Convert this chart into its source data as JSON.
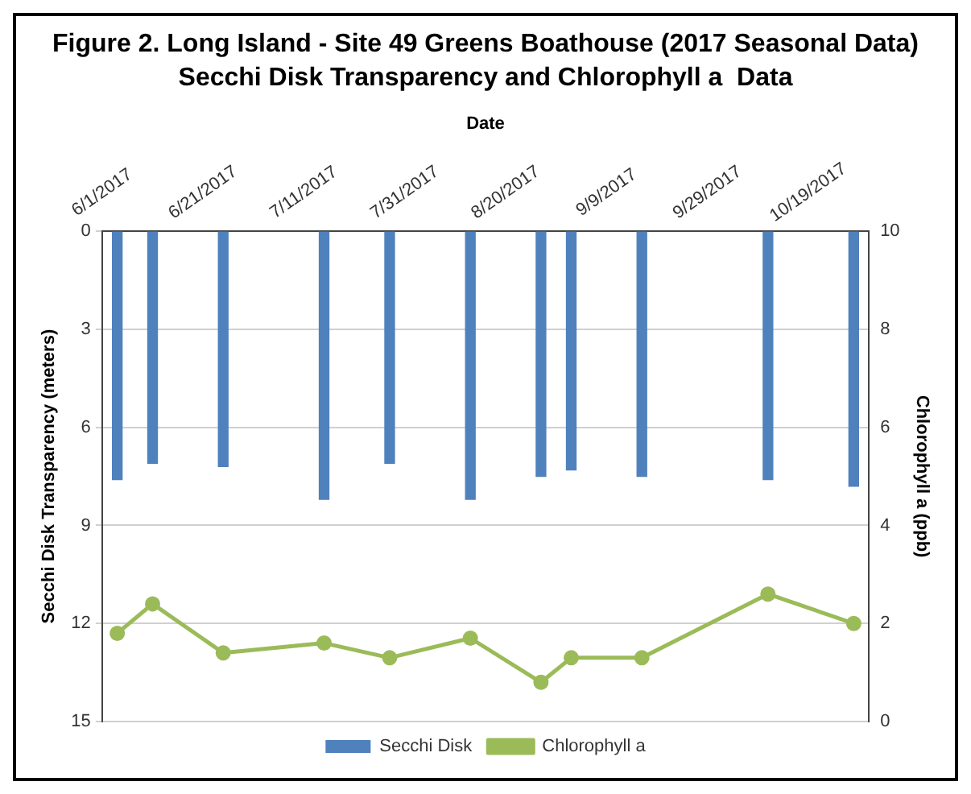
{
  "chart_data": {
    "type": "bar",
    "title": "Figure 2. Long Island - Site 49 Greens Boathouse (2017 Seasonal Data)",
    "subtitle": "Secchi Disk Transparency and Chlorophyll a  Data",
    "xlabel": "Date",
    "ylabel": "Secchi Disk Transparency (meters)",
    "y2label": "Chlorophyll a (ppb)",
    "x": [
      "2017-06-04",
      "2017-06-11",
      "2017-06-25",
      "2017-07-15",
      "2017-07-28",
      "2017-08-13",
      "2017-08-27",
      "2017-09-02",
      "2017-09-16",
      "2017-10-11",
      "2017-10-28"
    ],
    "series": [
      {
        "name": "Secchi Disk",
        "color": "#4f81bd",
        "values": [
          7.6,
          7.1,
          7.2,
          8.2,
          7.1,
          8.2,
          7.5,
          7.3,
          7.5,
          7.6,
          7.8
        ]
      },
      {
        "name": "Chlorophyll a",
        "type": "line",
        "axis": "y2",
        "color": "#9bbb59",
        "marker": "circle",
        "values": [
          1.8,
          2.4,
          1.4,
          1.6,
          1.3,
          1.7,
          0.8,
          1.3,
          1.3,
          2.6,
          2.0
        ]
      }
    ],
    "xlim": [
      "2017-06-01",
      "2017-10-31"
    ],
    "xticks": [
      {
        "value": "2017-06-01",
        "label": "6/1/2017"
      },
      {
        "value": "2017-06-21",
        "label": "6/21/2017"
      },
      {
        "value": "2017-07-11",
        "label": "7/11/2017"
      },
      {
        "value": "2017-07-31",
        "label": "7/31/2017"
      },
      {
        "value": "2017-08-20",
        "label": "8/20/2017"
      },
      {
        "value": "2017-09-09",
        "label": "9/9/2017"
      },
      {
        "value": "2017-09-29",
        "label": "9/29/2017"
      },
      {
        "value": "2017-10-19",
        "label": "10/19/2017"
      }
    ],
    "ylim": [
      15,
      0
    ],
    "yticks": [
      0,
      3,
      6,
      9,
      12,
      15
    ],
    "y2lim": [
      0,
      10
    ],
    "y2ticks": [
      0,
      2,
      4,
      6,
      8,
      10
    ],
    "grid": "y",
    "legend": "bottom"
  }
}
